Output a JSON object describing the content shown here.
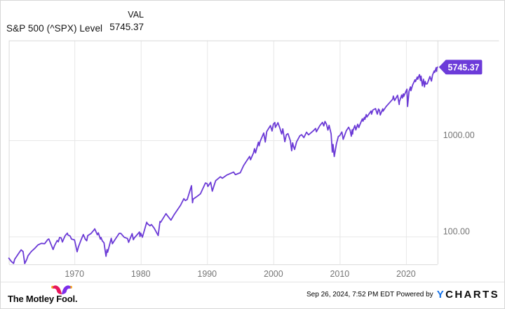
{
  "header": {
    "title": "S&P 500 (^SPX) Level",
    "value_column_label": "VAL",
    "current_value": "5745.37"
  },
  "footer": {
    "brand": "The Motley Fool.",
    "timestamp": "Sep 26, 2024, 7:52 PM EDT",
    "powered_by": "Powered by",
    "ycharts_y": "Y",
    "ycharts_rest": "CHARTS"
  },
  "colors": {
    "line": "#6B3AD6",
    "badge_bg": "#6C3BD9",
    "badge_text": "#ffffff",
    "grid": "#e7e7e7",
    "plot_border": "#d9d9d9",
    "axis_text": "#757575",
    "ycharts_blue": "#1170E8",
    "fool_hat_left": "#E8175D",
    "fool_hat_right": "#7D2EEA",
    "fool_hat_dots": "#F5A81C"
  },
  "chart_data": {
    "type": "line",
    "title": "S&P 500 (^SPX) Level",
    "series_name": "S&P 500 (^SPX) Level",
    "y_scale": "log",
    "x_domain": [
      1960.1,
      2024.75
    ],
    "ylim": [
      51.3,
      10690
    ],
    "x_ticks": [
      {
        "value": 1970,
        "label": "1970"
      },
      {
        "value": 1980,
        "label": "1980"
      },
      {
        "value": 1990,
        "label": "1990"
      },
      {
        "value": 2000,
        "label": "2000"
      },
      {
        "value": 2010,
        "label": "2010"
      },
      {
        "value": 2020,
        "label": "2020"
      }
    ],
    "y_ticks": [
      {
        "value": 100,
        "label": "100.00"
      },
      {
        "value": 1000,
        "label": "1000.00"
      }
    ],
    "grid": true,
    "legend": "none",
    "last_value_label": "5745.37",
    "points": [
      [
        1960.1,
        59.5
      ],
      [
        1960.45,
        55.3
      ],
      [
        1960.82,
        52.5
      ],
      [
        1961.0,
        58.1
      ],
      [
        1961.5,
        65.5
      ],
      [
        1961.95,
        72.6
      ],
      [
        1962.25,
        69.6
      ],
      [
        1962.5,
        52.3
      ],
      [
        1962.8,
        57.5
      ],
      [
        1963.0,
        63.1
      ],
      [
        1963.5,
        69.9
      ],
      [
        1964.0,
        75.0
      ],
      [
        1964.5,
        81.7
      ],
      [
        1965.0,
        84.8
      ],
      [
        1965.5,
        84.1
      ],
      [
        1965.95,
        92.6
      ],
      [
        1966.13,
        94.1
      ],
      [
        1966.78,
        73.2
      ],
      [
        1967.0,
        80.3
      ],
      [
        1967.4,
        91.0
      ],
      [
        1967.55,
        88.0
      ],
      [
        1967.75,
        97.6
      ],
      [
        1968.0,
        96.5
      ],
      [
        1968.18,
        87.7
      ],
      [
        1968.6,
        102.0
      ],
      [
        1968.92,
        108.4
      ],
      [
        1969.0,
        103.9
      ],
      [
        1969.35,
        101.0
      ],
      [
        1969.55,
        94.0
      ],
      [
        1970.0,
        92.1
      ],
      [
        1970.1,
        86.0
      ],
      [
        1970.4,
        69.3
      ],
      [
        1970.6,
        78.0
      ],
      [
        1971.0,
        92.2
      ],
      [
        1971.33,
        104.8
      ],
      [
        1971.62,
        94.0
      ],
      [
        1971.85,
        90.2
      ],
      [
        1972.0,
        102.1
      ],
      [
        1972.5,
        107.5
      ],
      [
        1973.0,
        118.1
      ],
      [
        1973.05,
        120.2
      ],
      [
        1973.45,
        104.0
      ],
      [
        1973.6,
        109.0
      ],
      [
        1973.9,
        94.0
      ],
      [
        1974.0,
        97.6
      ],
      [
        1974.2,
        90.0
      ],
      [
        1974.45,
        86.0
      ],
      [
        1974.76,
        62.3
      ],
      [
        1974.9,
        73.0
      ],
      [
        1975.0,
        68.6
      ],
      [
        1975.55,
        95.6
      ],
      [
        1975.72,
        83.9
      ],
      [
        1976.0,
        90.2
      ],
      [
        1976.75,
        107.8
      ],
      [
        1977.0,
        107.5
      ],
      [
        1977.5,
        98.0
      ],
      [
        1978.0,
        95.1
      ],
      [
        1978.17,
        86.9
      ],
      [
        1978.7,
        106.9
      ],
      [
        1978.88,
        92.5
      ],
      [
        1979.0,
        96.1
      ],
      [
        1979.8,
        111.3
      ],
      [
        1979.87,
        100.0
      ],
      [
        1980.0,
        107.9
      ],
      [
        1980.24,
        98.2
      ],
      [
        1980.9,
        140.5
      ],
      [
        1981.0,
        135.8
      ],
      [
        1981.4,
        129.0
      ],
      [
        1981.6,
        133.0
      ],
      [
        1982.0,
        122.6
      ],
      [
        1982.62,
        102.4
      ],
      [
        1982.9,
        143.0
      ],
      [
        1983.0,
        140.6
      ],
      [
        1983.8,
        172.6
      ],
      [
        1984.0,
        164.9
      ],
      [
        1984.55,
        147.8
      ],
      [
        1985.0,
        167.2
      ],
      [
        1985.5,
        188.0
      ],
      [
        1986.0,
        211.3
      ],
      [
        1986.5,
        247.0
      ],
      [
        1986.72,
        236.0
      ],
      [
        1987.0,
        242.2
      ],
      [
        1987.64,
        336.8
      ],
      [
        1987.8,
        223.9
      ],
      [
        1987.9,
        245.0
      ],
      [
        1988.0,
        247.1
      ],
      [
        1988.4,
        258.0
      ],
      [
        1989.0,
        277.7
      ],
      [
        1989.75,
        359.8
      ],
      [
        1990.0,
        353.4
      ],
      [
        1990.12,
        330.0
      ],
      [
        1990.54,
        365.8
      ],
      [
        1990.78,
        295.5
      ],
      [
        1991.0,
        330.2
      ],
      [
        1991.3,
        380.0
      ],
      [
        1992.0,
        417.1
      ],
      [
        1992.3,
        403.0
      ],
      [
        1993.0,
        435.7
      ],
      [
        1994.0,
        466.5
      ],
      [
        1994.27,
        438.9
      ],
      [
        1995.0,
        459.3
      ],
      [
        1995.5,
        545.0
      ],
      [
        1996.0,
        615.9
      ],
      [
        1996.42,
        678.5
      ],
      [
        1996.55,
        626.7
      ],
      [
        1997.0,
        740.7
      ],
      [
        1997.15,
        816.0
      ],
      [
        1997.3,
        737.6
      ],
      [
        1997.74,
        954.3
      ],
      [
        1997.85,
        877.0
      ],
      [
        1998.0,
        970.4
      ],
      [
        1998.54,
        1186.8
      ],
      [
        1998.77,
        957.3
      ],
      [
        1999.0,
        1229.2
      ],
      [
        1999.55,
        1420.0
      ],
      [
        1999.8,
        1247.4
      ],
      [
        2000.0,
        1469.3
      ],
      [
        2000.22,
        1527.5
      ],
      [
        2000.3,
        1356.0
      ],
      [
        2000.68,
        1520.8
      ],
      [
        2001.0,
        1320.3
      ],
      [
        2001.25,
        1160.3
      ],
      [
        2001.42,
        1312.8
      ],
      [
        2001.72,
        965.8
      ],
      [
        2001.95,
        1140.0
      ],
      [
        2002.2,
        1170.3
      ],
      [
        2002.55,
        989.0
      ],
      [
        2002.75,
        776.8
      ],
      [
        2002.9,
        938.9
      ],
      [
        2003.0,
        879.8
      ],
      [
        2003.2,
        800.7
      ],
      [
        2003.5,
        963.6
      ],
      [
        2004.0,
        1111.9
      ],
      [
        2004.25,
        1140.0
      ],
      [
        2004.6,
        1063.0
      ],
      [
        2005.0,
        1211.9
      ],
      [
        2005.3,
        1137.0
      ],
      [
        2006.0,
        1248.3
      ],
      [
        2006.37,
        1325.8
      ],
      [
        2006.48,
        1223.7
      ],
      [
        2007.0,
        1418.3
      ],
      [
        2007.4,
        1530.0
      ],
      [
        2007.6,
        1406.7
      ],
      [
        2007.78,
        1565.2
      ],
      [
        2008.0,
        1468.4
      ],
      [
        2008.22,
        1273.4
      ],
      [
        2008.4,
        1426.6
      ],
      [
        2008.7,
        1166.4
      ],
      [
        2008.88,
        752.4
      ],
      [
        2009.0,
        903.3
      ],
      [
        2009.18,
        676.5
      ],
      [
        2009.5,
        919.0
      ],
      [
        2009.8,
        1097.0
      ],
      [
        2010.0,
        1115.1
      ],
      [
        2010.32,
        1217.3
      ],
      [
        2010.52,
        1022.6
      ],
      [
        2011.0,
        1257.6
      ],
      [
        2011.35,
        1363.6
      ],
      [
        2011.58,
        1260.0
      ],
      [
        2011.75,
        1099.2
      ],
      [
        2011.88,
        1285.0
      ],
      [
        2011.95,
        1158.0
      ],
      [
        2012.0,
        1257.6
      ],
      [
        2012.28,
        1419.0
      ],
      [
        2012.43,
        1278.0
      ],
      [
        2012.72,
        1465.8
      ],
      [
        2012.88,
        1353.0
      ],
      [
        2013.0,
        1426.2
      ],
      [
        2013.42,
        1669.2
      ],
      [
        2013.5,
        1573.1
      ],
      [
        2013.73,
        1725.5
      ],
      [
        2013.8,
        1646.5
      ],
      [
        2014.0,
        1848.4
      ],
      [
        2014.1,
        1741.9
      ],
      [
        2014.73,
        2011.4
      ],
      [
        2014.8,
        1862.5
      ],
      [
        2015.0,
        2058.9
      ],
      [
        2015.4,
        2130.8
      ],
      [
        2015.66,
        1867.6
      ],
      [
        2015.85,
        2109.8
      ],
      [
        2016.0,
        2043.9
      ],
      [
        2016.12,
        1829.1
      ],
      [
        2016.5,
        2120.0
      ],
      [
        2016.54,
        2000.5
      ],
      [
        2017.0,
        2238.8
      ],
      [
        2017.5,
        2440.0
      ],
      [
        2018.0,
        2673.6
      ],
      [
        2018.08,
        2872.9
      ],
      [
        2018.27,
        2581.0
      ],
      [
        2018.73,
        2930.8
      ],
      [
        2018.97,
        2351.1
      ],
      [
        2019.0,
        2506.9
      ],
      [
        2019.35,
        2945.8
      ],
      [
        2019.44,
        2744.5
      ],
      [
        2019.6,
        3025.9
      ],
      [
        2019.65,
        2847.0
      ],
      [
        2020.0,
        3230.8
      ],
      [
        2020.14,
        3386.2
      ],
      [
        2020.23,
        2237.4
      ],
      [
        2020.45,
        3232.0
      ],
      [
        2020.68,
        3580.8
      ],
      [
        2020.74,
        3269.9
      ],
      [
        2021.0,
        3756.1
      ],
      [
        2021.35,
        4232.6
      ],
      [
        2021.42,
        4063.0
      ],
      [
        2021.7,
        4536.9
      ],
      [
        2021.77,
        4300.5
      ],
      [
        2022.0,
        4766.2
      ],
      [
        2022.03,
        4796.6
      ],
      [
        2022.18,
        4170.7
      ],
      [
        2022.26,
        4631.6
      ],
      [
        2022.47,
        3666.8
      ],
      [
        2022.63,
        4305.2
      ],
      [
        2022.78,
        3577.0
      ],
      [
        2022.9,
        4080.1
      ],
      [
        2023.0,
        3839.5
      ],
      [
        2023.2,
        3855.8
      ],
      [
        2023.6,
        4588.9
      ],
      [
        2023.83,
        4117.4
      ],
      [
        2024.0,
        4769.8
      ],
      [
        2024.25,
        5254.4
      ],
      [
        2024.32,
        5061.0
      ],
      [
        2024.55,
        5667.2
      ],
      [
        2024.6,
        5186.3
      ],
      [
        2024.66,
        5634.6
      ],
      [
        2024.74,
        5745.37
      ]
    ]
  }
}
